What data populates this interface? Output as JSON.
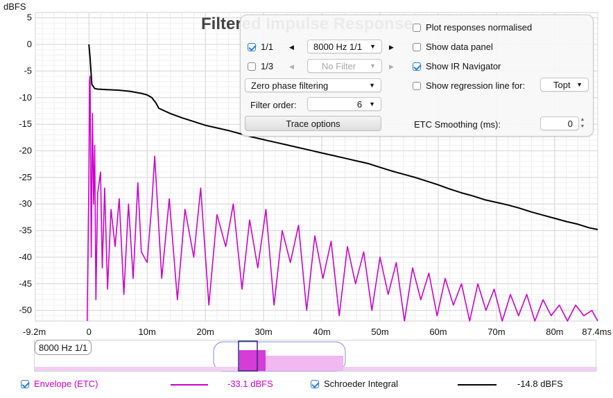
{
  "chart_data": {
    "type": "line",
    "title": "Filtered Impulse Response",
    "ylabel": "dBFS",
    "xlabel": "",
    "xlim": [
      -9.2,
      87.4
    ],
    "ylim": [
      -52,
      6
    ],
    "y_ticks": [
      5,
      0,
      -5,
      -10,
      -15,
      -20,
      -25,
      -30,
      -35,
      -40,
      -45,
      -50
    ],
    "x_ticks": [
      {
        "v": -9.2,
        "label": "-9.2m"
      },
      {
        "v": 0,
        "label": "0"
      },
      {
        "v": 10,
        "label": "10m"
      },
      {
        "v": 20,
        "label": "20m"
      },
      {
        "v": 30,
        "label": "30m"
      },
      {
        "v": 40,
        "label": "40m"
      },
      {
        "v": 50,
        "label": "50m"
      },
      {
        "v": 60,
        "label": "60m"
      },
      {
        "v": 70,
        "label": "70m"
      },
      {
        "v": 80,
        "label": "80m"
      },
      {
        "v": 87.4,
        "label": "87.4ms"
      }
    ],
    "grid": true,
    "series": [
      {
        "name": "Schroeder Integral",
        "color": "#000000",
        "x": [
          0,
          0.2,
          0.5,
          1.0,
          1.5,
          3,
          5,
          7,
          9,
          10,
          10.8,
          11.5,
          12,
          14,
          16,
          18,
          20,
          22,
          24,
          26,
          28,
          30,
          32,
          34,
          36,
          38,
          40,
          42,
          44,
          46,
          48,
          50,
          52,
          54,
          56,
          58,
          60,
          62,
          64,
          66,
          68,
          70,
          72,
          74,
          76,
          78,
          80,
          82,
          84,
          86,
          87.4
        ],
        "y": [
          0,
          -2.5,
          -7.5,
          -8.3,
          -8.4,
          -8.5,
          -8.6,
          -8.8,
          -9.2,
          -9.5,
          -10.0,
          -11.0,
          -12.0,
          -13.0,
          -13.8,
          -14.5,
          -15.2,
          -15.7,
          -16.2,
          -16.8,
          -17.4,
          -17.9,
          -18.4,
          -18.9,
          -19.4,
          -19.9,
          -20.4,
          -20.9,
          -21.4,
          -21.9,
          -22.4,
          -23.1,
          -23.8,
          -24.4,
          -25.0,
          -25.7,
          -26.4,
          -27.2,
          -27.9,
          -28.5,
          -29.2,
          -29.7,
          -30.2,
          -30.8,
          -31.5,
          -32.1,
          -32.7,
          -33.3,
          -33.8,
          -34.5,
          -34.8
        ]
      },
      {
        "name": "Envelope (ETC)",
        "color": "#cc00cc",
        "x": [
          -0.3,
          0,
          0.1,
          0.2,
          0.4,
          0.6,
          0.8,
          1.0,
          1.2,
          1.5,
          2.0,
          2.3,
          2.7,
          3.2,
          3.8,
          4.5,
          5.2,
          6.0,
          6.8,
          7.6,
          8.4,
          9.0,
          10.0,
          10.8,
          11.3,
          12.5,
          13.8,
          15.2,
          16.5,
          18.0,
          19.2,
          20.6,
          22.0,
          23.5,
          24.8,
          26.3,
          27.6,
          29.0,
          30.4,
          31.8,
          33.2,
          34.6,
          36.0,
          37.4,
          38.8,
          40.2,
          41.6,
          43.0,
          44.4,
          45.8,
          47.2,
          48.6,
          50.0,
          51.4,
          52.8,
          54.2,
          55.6,
          57.0,
          58.4,
          59.8,
          61.2,
          62.6,
          64.0,
          65.4,
          66.8,
          68.2,
          69.6,
          71.0,
          72.4,
          73.8,
          75.2,
          76.6,
          78.0,
          79.4,
          80.8,
          82.2,
          83.6,
          85.0,
          86.4,
          87.4
        ],
        "y": [
          -52,
          -25,
          -7,
          -6,
          -40,
          -13,
          -30,
          -19,
          -48,
          -28,
          -24,
          -42,
          -27,
          -46,
          -31,
          -38,
          -29,
          -47,
          -30,
          -44,
          -26,
          -39,
          -41,
          -30,
          -21,
          -44,
          -29,
          -48,
          -31,
          -40,
          -27,
          -49,
          -32,
          -38,
          -30,
          -46,
          -33,
          -42,
          -31,
          -49,
          -35,
          -41,
          -34,
          -50,
          -36,
          -44,
          -37,
          -51,
          -38,
          -45,
          -39,
          -50,
          -40,
          -47,
          -41,
          -52,
          -42,
          -48,
          -43,
          -51,
          -44,
          -49,
          -45,
          -52,
          -45,
          -50,
          -46,
          -52,
          -47,
          -51,
          -47,
          -52,
          -48,
          -51,
          -49,
          -52,
          -49,
          -51,
          -50,
          -52
        ]
      }
    ]
  },
  "controls": {
    "plot_normalised_label": "Plot responses normalised",
    "row1_check_label": "1/1",
    "row1_select_value": "8000 Hz 1/1",
    "row2_check_label": "1/3",
    "row2_select_value": "No Filter",
    "show_data_panel_label": "Show data panel",
    "show_ir_navigator_label": "Show IR Navigator",
    "show_regression_label": "Show regression line for:",
    "regression_select_value": "Topt",
    "filter_mode_value": "Zero phase filtering",
    "filter_order_label": "Filter order:",
    "filter_order_value": "6",
    "trace_options_label": "Trace options",
    "etc_smoothing_label": "ETC Smoothing (ms):",
    "etc_smoothing_value": "0"
  },
  "navigator": {
    "label": "8000 Hz 1/1"
  },
  "legend": {
    "envelope_label": "Envelope (ETC)",
    "envelope_value": "-33.1 dBFS",
    "envelope_color": "#cc00cc",
    "schroeder_label": "Schroeder Integral",
    "schroeder_value": "-14.8 dBFS",
    "schroeder_color": "#000000"
  }
}
